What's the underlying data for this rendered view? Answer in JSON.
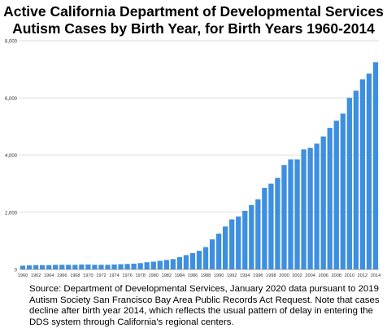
{
  "chart_data": {
    "type": "bar",
    "title_line1": "Active California Department of Developmental Services",
    "title_line2": "Autism Cases by Birth Year, for Birth Years 1960-2014",
    "xlabel": "",
    "ylabel": "",
    "ylim": [
      0,
      8000
    ],
    "yticks": [
      0,
      2000,
      4000,
      6000,
      8000
    ],
    "ytick_labels": [
      "0",
      "2,000",
      "4,000",
      "6,000",
      "8,000"
    ],
    "grid": true,
    "legend": "none",
    "bar_color": "#3d8fe0",
    "categories": [
      "1960",
      "1961",
      "1962",
      "1963",
      "1964",
      "1965",
      "1966",
      "1967",
      "1968",
      "1969",
      "1970",
      "1971",
      "1972",
      "1973",
      "1974",
      "1975",
      "1976",
      "1977",
      "1978",
      "1979",
      "1980",
      "1981",
      "1982",
      "1983",
      "1984",
      "1985",
      "1986",
      "1987",
      "1988",
      "1989",
      "1990",
      "1991",
      "1992",
      "1993",
      "1994",
      "1995",
      "1996",
      "1997",
      "1998",
      "1999",
      "2000",
      "2001",
      "2002",
      "2003",
      "2004",
      "2005",
      "2006",
      "2007",
      "2008",
      "2009",
      "2010",
      "2011",
      "2012",
      "2013",
      "2014"
    ],
    "xtick_labels": [
      "1960",
      "1962",
      "1964",
      "1966",
      "1968",
      "1970",
      "1972",
      "1974",
      "1976",
      "1978",
      "1980",
      "1982",
      "1984",
      "1986",
      "1988",
      "1990",
      "1992",
      "1994",
      "1996",
      "1998",
      "2000",
      "2002",
      "2004",
      "2006",
      "2008",
      "2010",
      "2012",
      "2014"
    ],
    "values": [
      130,
      140,
      150,
      150,
      150,
      160,
      160,
      160,
      160,
      170,
      170,
      160,
      160,
      160,
      170,
      180,
      190,
      200,
      220,
      250,
      270,
      300,
      330,
      360,
      430,
      500,
      570,
      650,
      780,
      1050,
      1250,
      1500,
      1750,
      1850,
      2050,
      2250,
      2450,
      2850,
      3000,
      3200,
      3650,
      3850,
      3850,
      4200,
      4250,
      4400,
      4650,
      4950,
      5200,
      5450,
      6000,
      6250,
      6650,
      6850,
      7250
    ]
  },
  "source_text": "Source: Department of Developmental Services, January 2020 data pursuant to 2019 Autism Society San Francisco Bay Area Public Records Act Request. Note that cases decline after birth year 2014, which reflects the usual pattern of delay in entering the DDS system through California's regional centers."
}
